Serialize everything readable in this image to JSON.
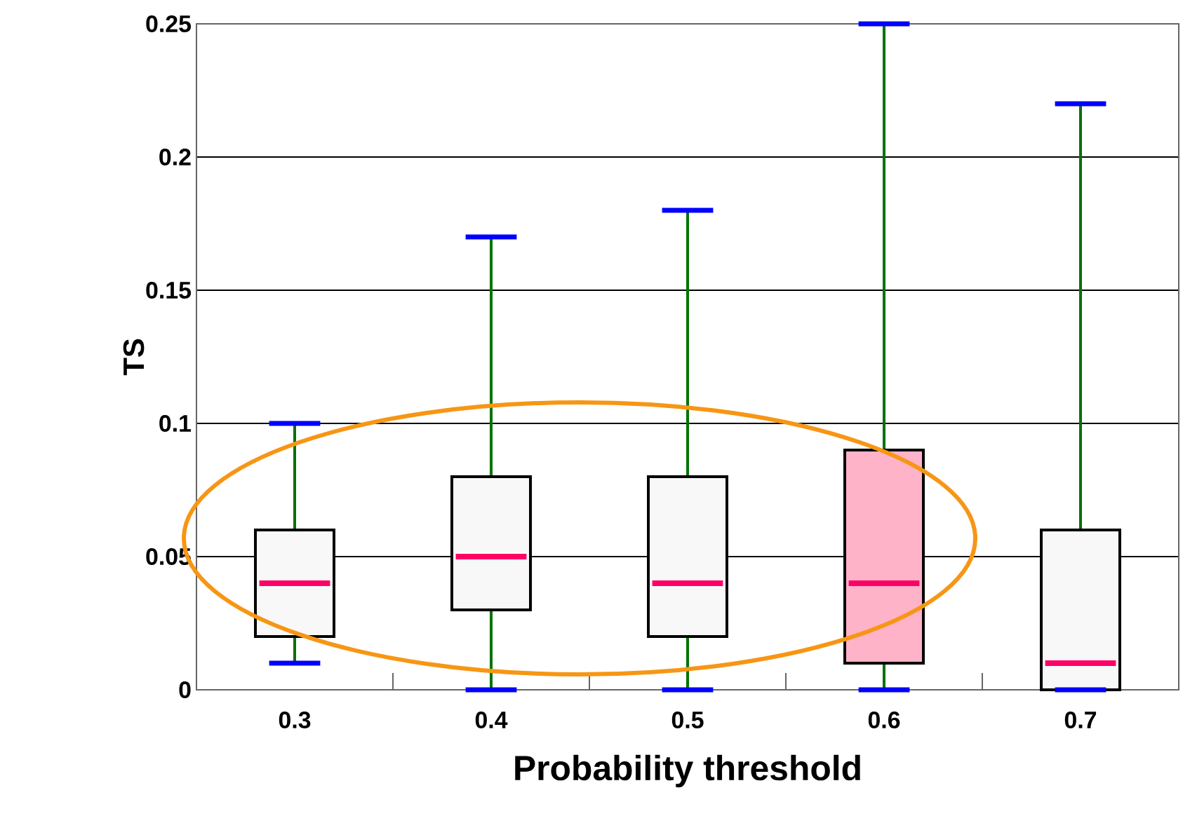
{
  "chart_data": {
    "type": "box",
    "xlabel": "Probability threshold",
    "ylabel": "TS",
    "categories": [
      "0.3",
      "0.4",
      "0.5",
      "0.6",
      "0.7"
    ],
    "boxes": [
      {
        "low": 0.01,
        "q1": 0.02,
        "median": 0.04,
        "q3": 0.06,
        "high": 0.1
      },
      {
        "low": 0,
        "q1": 0.03,
        "median": 0.05,
        "q3": 0.08,
        "high": 0.17
      },
      {
        "low": 0,
        "q1": 0.02,
        "median": 0.04,
        "q3": 0.08,
        "high": 0.18
      },
      {
        "low": 0,
        "q1": 0.01,
        "median": 0.04,
        "q3": 0.09,
        "high": 0.25
      },
      {
        "low": 0,
        "q1": 0,
        "median": 0.01,
        "q3": 0.06,
        "high": 0.22
      }
    ],
    "colors": [
      "#f8f8f8",
      "#f8f8f8",
      "#f8f8f8",
      "#ffb3c9",
      "#f8f8f8"
    ],
    "ylim": [
      0,
      0.25
    ],
    "yticks": [
      0,
      0.05,
      0.1,
      0.15,
      0.2,
      0.25
    ],
    "grid": "y"
  }
}
